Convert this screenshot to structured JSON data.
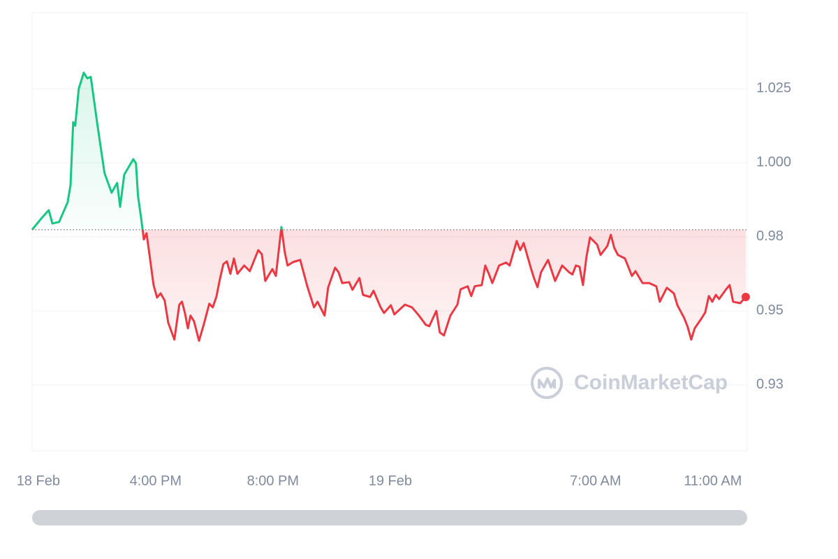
{
  "chart_data": {
    "type": "line",
    "watermark": "CoinMarketCap",
    "baseline": 0.9774,
    "up_color": "#16c784",
    "down_color": "#ea3943",
    "grid": true,
    "xlim": [
      -0.21,
      24.17
    ],
    "xticks": [
      {
        "value": 0,
        "label": "18 Feb"
      },
      {
        "value": 4,
        "label": "4:00 PM"
      },
      {
        "value": 8,
        "label": "8:00 PM"
      },
      {
        "value": 12,
        "label": "19 Feb"
      },
      {
        "value": 19,
        "label": "7:00 AM"
      },
      {
        "value": 23,
        "label": "11:00 AM"
      }
    ],
    "ylim": [
      0.9028,
      1.0507
    ],
    "yticks": [
      {
        "value": 0.925,
        "label": "0.93"
      },
      0.95,
      {
        "value": 0.975,
        "label": "0.98"
      },
      {
        "value": 1,
        "label": "1.000"
      },
      1.025
    ],
    "x": [
      -0.21,
      0.12,
      0.36,
      0.48,
      0.71,
      1.0,
      1.1,
      1.19,
      1.26,
      1.38,
      1.55,
      1.67,
      1.79,
      2.02,
      2.26,
      2.5,
      2.69,
      2.79,
      2.93,
      3.24,
      3.33,
      3.4,
      3.5,
      3.6,
      3.69,
      3.81,
      3.93,
      4.05,
      4.17,
      4.31,
      4.43,
      4.64,
      4.81,
      4.9,
      5.0,
      5.1,
      5.19,
      5.31,
      5.48,
      5.64,
      5.83,
      5.95,
      6.07,
      6.19,
      6.31,
      6.43,
      6.55,
      6.67,
      6.79,
      7.02,
      7.21,
      7.5,
      7.62,
      7.74,
      7.98,
      8.1,
      8.29,
      8.4,
      8.5,
      8.69,
      8.93,
      9.17,
      9.4,
      9.52,
      9.76,
      9.88,
      10.12,
      10.24,
      10.36,
      10.6,
      10.71,
      10.95,
      11.07,
      11.31,
      11.43,
      11.67,
      11.79,
      12.02,
      12.14,
      12.5,
      12.74,
      12.98,
      13.21,
      13.33,
      13.57,
      13.69,
      13.83,
      14.05,
      14.29,
      14.4,
      14.64,
      14.76,
      14.88,
      15.12,
      15.24,
      15.36,
      15.48,
      15.71,
      15.95,
      16.07,
      16.31,
      16.43,
      16.55,
      16.79,
      16.9,
      17.02,
      17.14,
      17.38,
      17.62,
      17.86,
      18.1,
      18.21,
      18.33,
      18.45,
      18.57,
      18.69,
      18.81,
      19.05,
      19.17,
      19.4,
      19.52,
      19.64,
      19.76,
      20.0,
      20.24,
      20.36,
      20.6,
      20.83,
      21.07,
      21.19,
      21.43,
      21.67,
      21.79,
      22.02,
      22.14,
      22.26,
      22.38,
      22.62,
      22.74,
      22.86,
      22.98,
      23.1,
      23.21,
      23.45,
      23.57,
      23.69,
      23.93,
      24.12
    ],
    "values": [
      0.9774,
      0.9814,
      0.984,
      0.9795,
      0.98,
      0.9866,
      0.9925,
      1.0137,
      1.0125,
      1.025,
      1.0304,
      1.0285,
      1.029,
      1.0125,
      0.9965,
      0.9899,
      0.9932,
      0.9851,
      0.996,
      1.0012,
      0.9998,
      0.9889,
      0.9818,
      0.9741,
      0.9762,
      0.9677,
      0.9587,
      0.9545,
      0.9559,
      0.9535,
      0.946,
      0.9403,
      0.9521,
      0.9531,
      0.9493,
      0.9441,
      0.9484,
      0.9465,
      0.9399,
      0.9453,
      0.9524,
      0.9512,
      0.9547,
      0.9606,
      0.9658,
      0.9667,
      0.9625,
      0.9677,
      0.9625,
      0.9653,
      0.9634,
      0.9705,
      0.9691,
      0.9601,
      0.9641,
      0.9618,
      0.9783,
      0.97,
      0.9653,
      0.9665,
      0.9672,
      0.9583,
      0.9512,
      0.9531,
      0.9484,
      0.9578,
      0.9646,
      0.963,
      0.9594,
      0.9597,
      0.9571,
      0.9611,
      0.9554,
      0.9547,
      0.9568,
      0.9512,
      0.9493,
      0.9519,
      0.9488,
      0.9521,
      0.9512,
      0.9484,
      0.9453,
      0.9448,
      0.95,
      0.9427,
      0.9417,
      0.9484,
      0.9521,
      0.9573,
      0.9583,
      0.955,
      0.9583,
      0.9587,
      0.9653,
      0.9625,
      0.9594,
      0.9653,
      0.9663,
      0.9653,
      0.9736,
      0.9705,
      0.9729,
      0.9646,
      0.9611,
      0.958,
      0.963,
      0.9672,
      0.9601,
      0.9653,
      0.963,
      0.9623,
      0.9653,
      0.9649,
      0.9587,
      0.9682,
      0.9748,
      0.9724,
      0.9689,
      0.9719,
      0.9757,
      0.9712,
      0.9689,
      0.9677,
      0.9618,
      0.9634,
      0.9594,
      0.9594,
      0.9583,
      0.9531,
      0.9578,
      0.9559,
      0.9519,
      0.9476,
      0.9446,
      0.9403,
      0.9441,
      0.9476,
      0.9495,
      0.955,
      0.9531,
      0.9554,
      0.954,
      0.9573,
      0.9587,
      0.9531,
      0.9526,
      0.9547
    ]
  }
}
